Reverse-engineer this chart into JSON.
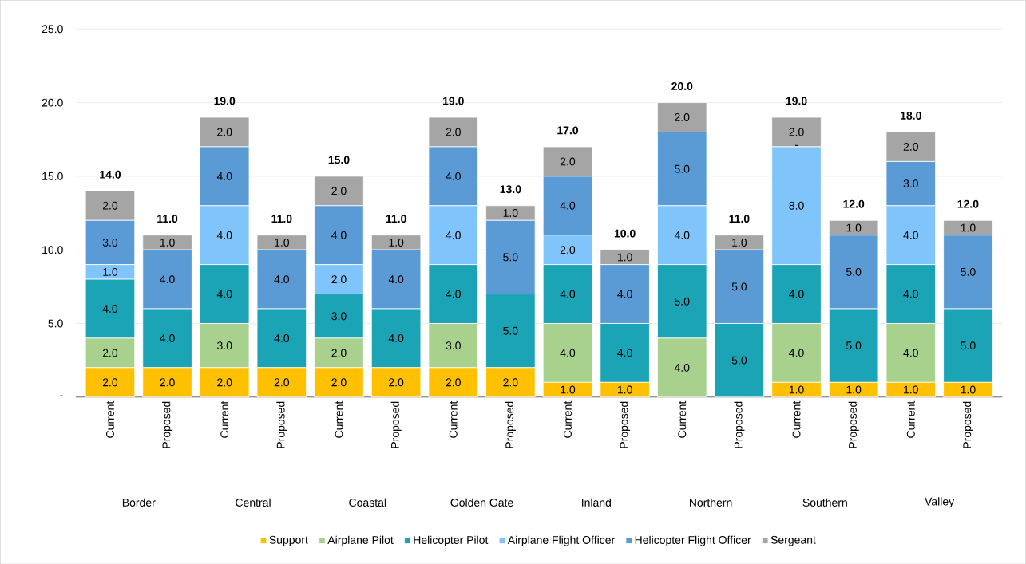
{
  "chart_data": {
    "type": "bar",
    "stacked": true,
    "categories": [
      "Current",
      "Proposed",
      "Current",
      "Proposed",
      "Current",
      "Proposed",
      "Current",
      "Proposed",
      "Current",
      "Proposed",
      "Current",
      "Proposed",
      "Current",
      "Proposed",
      "Current",
      "Proposed"
    ],
    "annotations": [
      "Border",
      "Central",
      "Coastal",
      "Golden Gate",
      "Inland",
      "Northern",
      "Southern",
      "Valley"
    ],
    "series": [
      {
        "name": "Support",
        "color": "#ffc000",
        "values": [
          2,
          2,
          2,
          2,
          2,
          2,
          2,
          2,
          1,
          1,
          0,
          0,
          1,
          1,
          1,
          1
        ],
        "value_labels": [
          "2.0",
          "2.0",
          "2.0",
          "2.0",
          "2.0",
          "2.0",
          "2.0",
          "2.0",
          "1.0",
          "1.0",
          null,
          null,
          "1.0",
          "1.0",
          "1.0",
          "1.0"
        ]
      },
      {
        "name": "Airplane Pilot",
        "color": "#a9d18e",
        "values": [
          2,
          0,
          3,
          0,
          2,
          0,
          3,
          0,
          4,
          0,
          4,
          0,
          4,
          0,
          4,
          0
        ],
        "value_labels": [
          "2.0",
          null,
          "3.0",
          null,
          "2.0",
          null,
          "3.0",
          null,
          "4.0",
          null,
          "4.0",
          null,
          "4.0",
          null,
          "4.0",
          null
        ]
      },
      {
        "name": "Helicopter Pilot",
        "color": "#1ba3b6",
        "values": [
          4,
          4,
          4,
          4,
          3,
          4,
          4,
          5,
          4,
          4,
          5,
          5,
          4,
          5,
          4,
          5
        ],
        "value_labels": [
          "4.0",
          "4.0",
          "4.0",
          "4.0",
          "3.0",
          "4.0",
          "4.0",
          "5.0",
          "4.0",
          "4.0",
          "5.0",
          "5.0",
          "4.0",
          "5.0",
          "4.0",
          "5.0"
        ]
      },
      {
        "name": "Airplane Flight Officer",
        "color": "#80c4fc",
        "values": [
          1,
          0,
          4,
          0,
          2,
          0,
          4,
          0,
          2,
          0,
          4,
          0,
          8,
          0,
          4,
          0
        ],
        "value_labels": [
          "1.0",
          null,
          "4.0",
          null,
          "2.0",
          null,
          "4.0",
          null,
          "2.0",
          null,
          "4.0",
          null,
          "8.0",
          null,
          "4.0",
          null
        ]
      },
      {
        "name": "Helicopter Flight Officer",
        "color": "#5b9bd5",
        "values": [
          3,
          4,
          4,
          4,
          4,
          4,
          4,
          5,
          4,
          4,
          5,
          5,
          0,
          5,
          3,
          5
        ],
        "value_labels": [
          "3.0",
          "4.0",
          "4.0",
          "4.0",
          "4.0",
          "4.0",
          "4.0",
          "5.0",
          "4.0",
          "4.0",
          "5.0",
          "5.0",
          "-",
          "5.0",
          "3.0",
          "5.0"
        ]
      },
      {
        "name": "Sergeant",
        "color": "#a5a5a5",
        "values": [
          2,
          1,
          2,
          1,
          2,
          1,
          2,
          1,
          2,
          1,
          2,
          1,
          2,
          1,
          2,
          1
        ],
        "value_labels": [
          "2.0",
          "1.0",
          "2.0",
          "1.0",
          "2.0",
          "1.0",
          "2.0",
          "1.0",
          "2.0",
          "1.0",
          "2.0",
          "1.0",
          "2.0",
          "1.0",
          "2.0",
          "1.0"
        ]
      }
    ],
    "totals": [
      "14.0",
      "11.0",
      "19.0",
      "11.0",
      "15.0",
      "11.0",
      "19.0",
      "13.0",
      "17.0",
      "10.0",
      "20.0",
      "11.0",
      "19.0",
      "12.0",
      "18.0",
      "12.0"
    ],
    "ylim": [
      0,
      25
    ],
    "yticks": [
      {
        "value": 0,
        "label": "-"
      },
      {
        "value": 5,
        "label": "5.0"
      },
      {
        "value": 10,
        "label": "10.0"
      },
      {
        "value": 15,
        "label": "15.0"
      },
      {
        "value": 20,
        "label": "20.0"
      },
      {
        "value": 25,
        "label": "25.0"
      }
    ],
    "grid": "y",
    "legend": "bottom"
  }
}
